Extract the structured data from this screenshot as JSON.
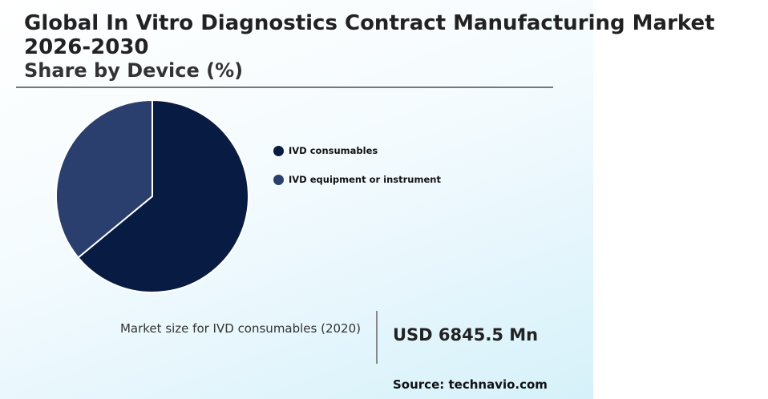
{
  "header": {
    "title": "Global In Vitro Diagnostics Contract Manufacturing Market 2026-2030",
    "subtitle": "Share by Device (%)"
  },
  "chart_data": {
    "type": "pie",
    "title": "Global In Vitro Diagnostics Contract Manufacturing Market 2026-2030",
    "subtitle": "Share by Device (%)",
    "categories": [
      "IVD consumables",
      "IVD equipment or instrument"
    ],
    "values": [
      64,
      36
    ],
    "colors": [
      "#081b42",
      "#2b3f6e"
    ],
    "start_angle_deg": 0,
    "direction": "clockwise",
    "legend_position": "right"
  },
  "callout": {
    "label": "Market size for IVD consumables (2020)",
    "value": "USD 6845.5 Mn"
  },
  "source": "Source: technavio.com"
}
